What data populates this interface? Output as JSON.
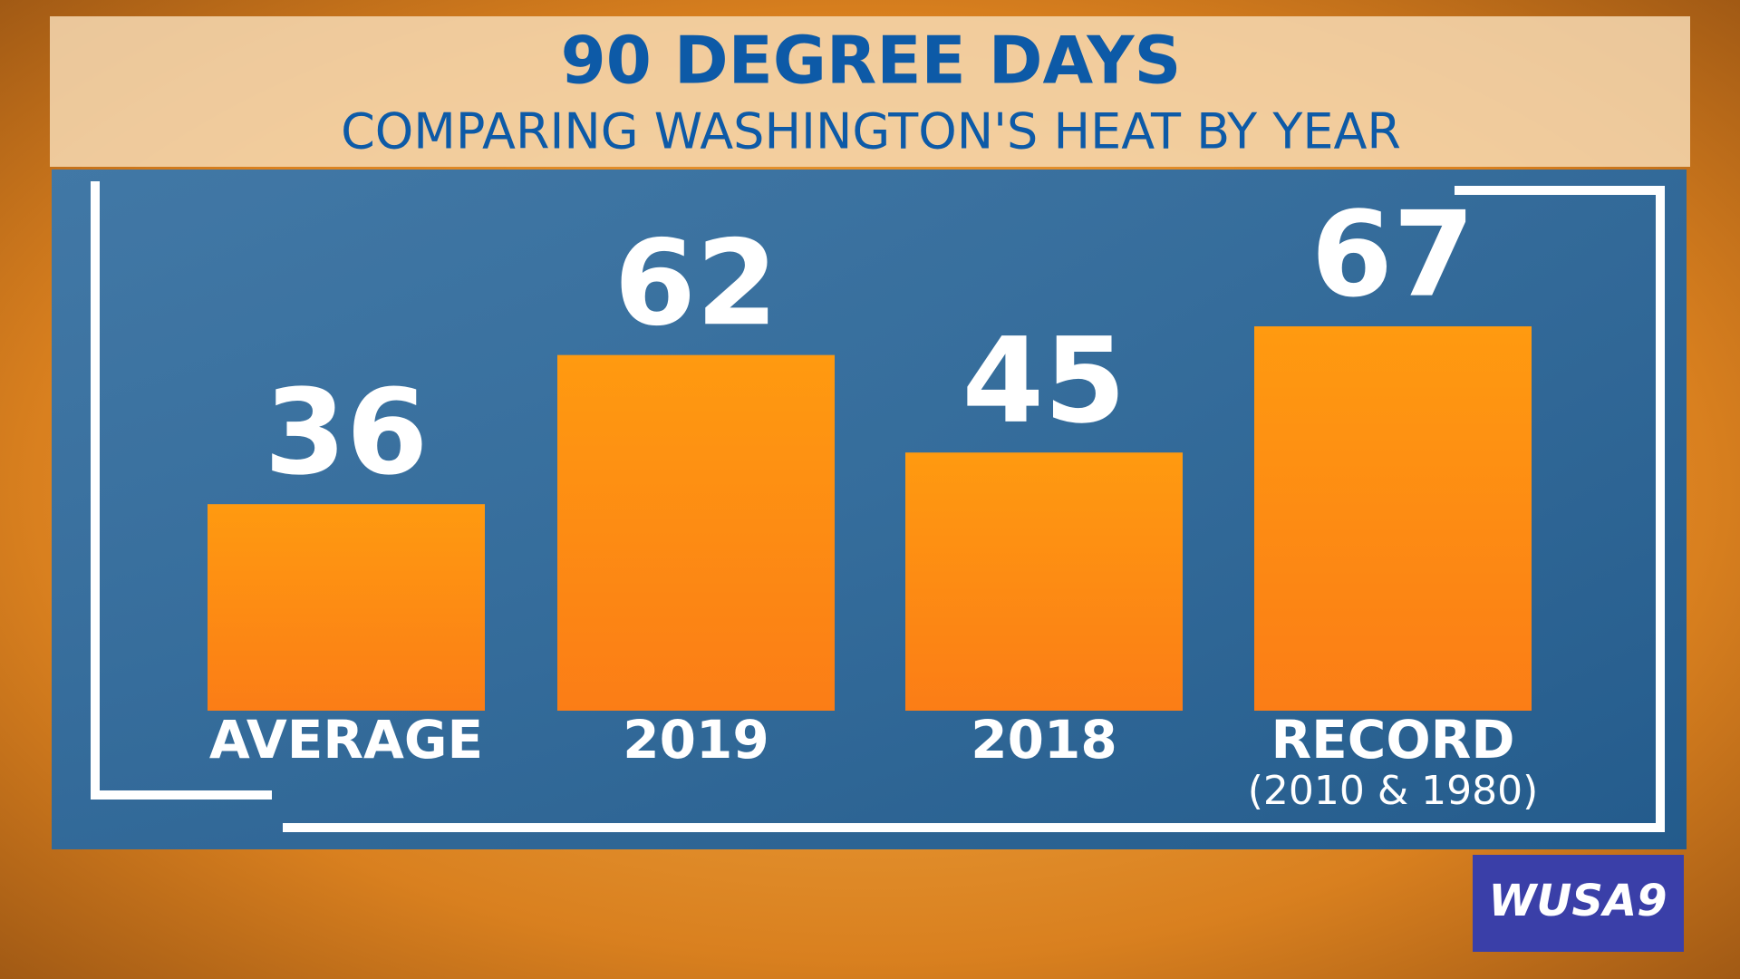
{
  "chart_data": {
    "type": "bar",
    "title": "90 DEGREE DAYS",
    "subtitle": "COMPARING WASHINGTON'S HEAT BY YEAR",
    "categories": [
      "AVERAGE",
      "2019",
      "2018",
      "RECORD"
    ],
    "category_notes": [
      null,
      null,
      null,
      "(2010 & 1980)"
    ],
    "values": [
      36,
      62,
      45,
      67
    ],
    "color": "#ff8c0f"
  },
  "logo": "WUSA9"
}
